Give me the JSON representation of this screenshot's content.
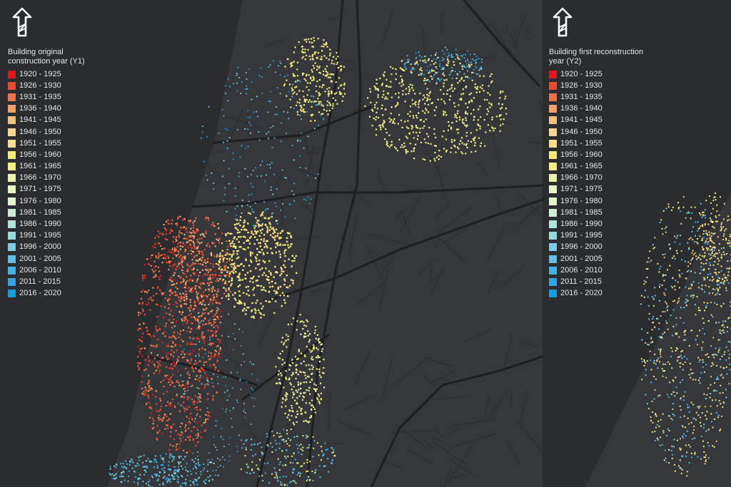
{
  "colors": {
    "background": "#2a2c2f",
    "land": "#35373a",
    "sea": "#2a2c2f",
    "roads_major": "#1e1f21",
    "roads_minor": "#2f3134",
    "legend_text": "#e6e6e6"
  },
  "north_arrow_icon": "north-arrow-icon",
  "legend_left": {
    "title": "Building original construction year (Y1)",
    "items": [
      {
        "label": "1920 - 1925",
        "color": "#e8141c"
      },
      {
        "label": "1926 - 1930",
        "color": "#ee4a2a"
      },
      {
        "label": "1931 - 1935",
        "color": "#f27046"
      },
      {
        "label": "1936 - 1940",
        "color": "#f4a066"
      },
      {
        "label": "1941 - 1945",
        "color": "#f7bf7a"
      },
      {
        "label": "1946 - 1950",
        "color": "#f8d58a"
      },
      {
        "label": "1951 - 1955",
        "color": "#f6e08a"
      },
      {
        "label": "1956 - 1960",
        "color": "#f5ea74"
      },
      {
        "label": "1961 - 1965",
        "color": "#f2ef7c"
      },
      {
        "label": "1966 - 1970",
        "color": "#eef3a4"
      },
      {
        "label": "1971 - 1975",
        "color": "#e8f5c2"
      },
      {
        "label": "1976 - 1980",
        "color": "#e0f5cc"
      },
      {
        "label": "1981 - 1985",
        "color": "#cdeed6"
      },
      {
        "label": "1986 - 1990",
        "color": "#aee5d8"
      },
      {
        "label": "1991 - 1995",
        "color": "#93dbe0"
      },
      {
        "label": "1996 - 2000",
        "color": "#7acde6"
      },
      {
        "label": "2001 - 2005",
        "color": "#5ec0e8"
      },
      {
        "label": "2006 - 2010",
        "color": "#42b3ea"
      },
      {
        "label": "2011 - 2015",
        "color": "#2aa8e6"
      },
      {
        "label": "2016 - 2020",
        "color": "#129ee2"
      }
    ]
  },
  "legend_right": {
    "title": "Building first reconstruction year (Y2)",
    "items": [
      {
        "label": "1920 - 1925",
        "color": "#e8141c"
      },
      {
        "label": "1926 - 1930",
        "color": "#ee4a2a"
      },
      {
        "label": "1931 - 1935",
        "color": "#f27046"
      },
      {
        "label": "1936 - 1940",
        "color": "#f4a066"
      },
      {
        "label": "1941 - 1945",
        "color": "#f7bf7a"
      },
      {
        "label": "1946 - 1950",
        "color": "#f8d58a"
      },
      {
        "label": "1951 - 1955",
        "color": "#f6e08a"
      },
      {
        "label": "1956 - 1960",
        "color": "#f5ea74"
      },
      {
        "label": "1961 - 1965",
        "color": "#f2ef7c"
      },
      {
        "label": "1966 - 1970",
        "color": "#eef3a4"
      },
      {
        "label": "1971 - 1975",
        "color": "#e8f5c2"
      },
      {
        "label": "1976 - 1980",
        "color": "#e0f5cc"
      },
      {
        "label": "1981 - 1985",
        "color": "#cdeed6"
      },
      {
        "label": "1986 - 1990",
        "color": "#aee5d8"
      },
      {
        "label": "1991 - 1995",
        "color": "#93dbe0"
      },
      {
        "label": "1996 - 2000",
        "color": "#7acde6"
      },
      {
        "label": "2001 - 2005",
        "color": "#5ec0e8"
      },
      {
        "label": "2006 - 2010",
        "color": "#42b3ea"
      },
      {
        "label": "2011 - 2015",
        "color": "#2aa8e6"
      },
      {
        "label": "2016 - 2020",
        "color": "#129ee2"
      }
    ]
  }
}
